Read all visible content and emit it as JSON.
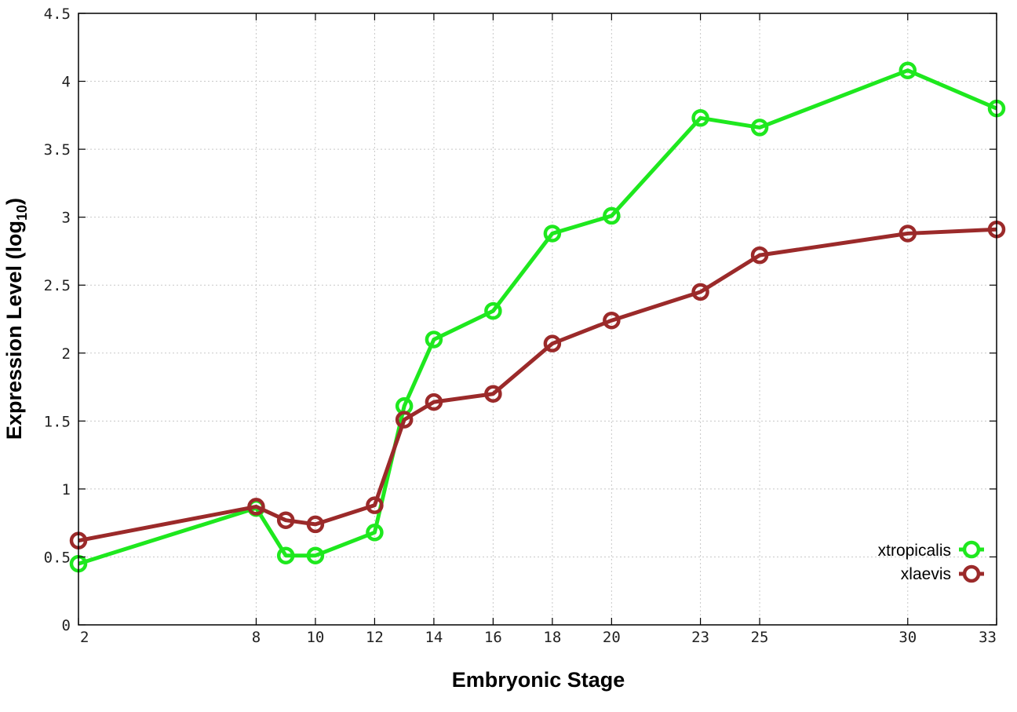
{
  "chart_data": {
    "type": "line",
    "xlabel": "Embryonic Stage",
    "ylabel": {
      "main": "Expression Level (log",
      "subscript": "10",
      "suffix": ")"
    },
    "x_ticks": [
      "2",
      "8",
      "10",
      "12",
      "14",
      "16",
      "18",
      "20",
      "23",
      "25",
      "30",
      "33"
    ],
    "y_ticks": [
      "0",
      "0.5",
      "1",
      "1.5",
      "2",
      "2.5",
      "3",
      "3.5",
      "4",
      "4.5"
    ],
    "xlim": [
      2,
      33
    ],
    "ylim": [
      0,
      4.5
    ],
    "grid": true,
    "legend_position": "bottom-right",
    "series": [
      {
        "name": "xtropicalis",
        "color": "#1ee81e",
        "x": [
          2,
          8,
          9,
          10,
          12,
          13,
          14,
          16,
          18,
          20,
          23,
          25,
          30,
          33
        ],
        "y": [
          0.45,
          0.86,
          0.51,
          0.51,
          0.68,
          1.61,
          2.1,
          2.31,
          2.88,
          3.01,
          3.73,
          3.66,
          4.08,
          3.8
        ]
      },
      {
        "name": "xlaevis",
        "color": "#9b2a2a",
        "x": [
          2,
          8,
          9,
          10,
          12,
          13,
          14,
          16,
          18,
          20,
          23,
          25,
          30,
          33
        ],
        "y": [
          0.62,
          0.87,
          0.77,
          0.74,
          0.88,
          1.51,
          1.64,
          1.7,
          2.07,
          2.24,
          2.45,
          2.72,
          2.88,
          2.91
        ]
      }
    ]
  }
}
